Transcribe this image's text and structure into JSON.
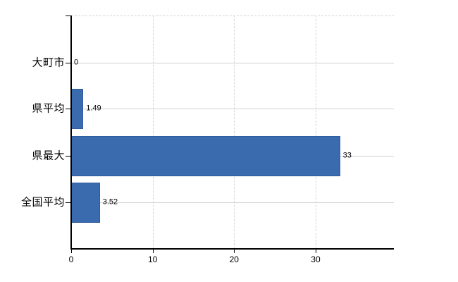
{
  "chart_data": {
    "type": "bar",
    "orientation": "horizontal",
    "title": "",
    "xlabel": "",
    "ylabel": "",
    "categories": [
      "大町市",
      "県平均",
      "県最大",
      "全国平均"
    ],
    "values": [
      0,
      1.49,
      33,
      3.52
    ],
    "value_labels": [
      "0",
      "1.49",
      "33",
      "3.52"
    ],
    "x_ticks": [
      0,
      10,
      20,
      30
    ],
    "x_tick_labels": [
      "0",
      "10",
      "20",
      "30"
    ],
    "xlim": [
      0,
      39.6
    ],
    "legend": "none",
    "grid": "horizontal solid lines at category centers; vertical dashed gridlines at x ticks; dashed top plot border",
    "colors": {
      "bar": "#3a6bae",
      "bar_border": "#2f5c9c",
      "grid_solid": "#ccd4cc",
      "grid_dashed": "#d2d2da",
      "axis": "#000000",
      "text": "#000000",
      "background": "#ffffff"
    }
  }
}
